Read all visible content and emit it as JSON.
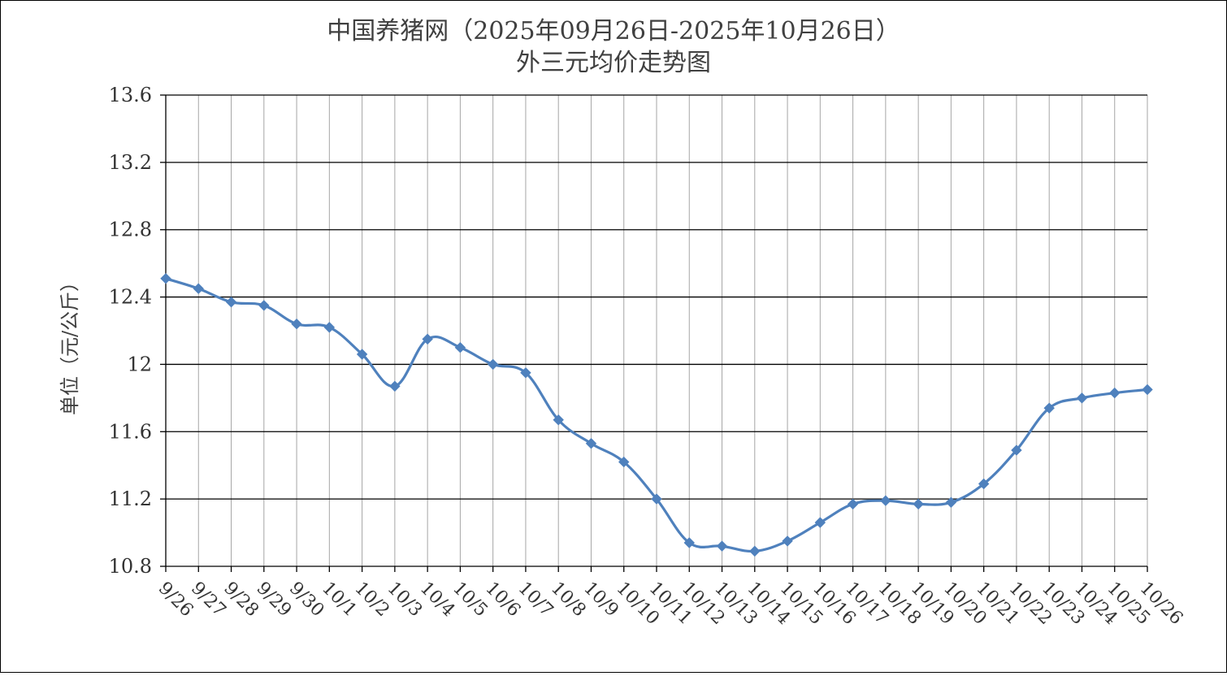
{
  "chart_data": {
    "type": "line",
    "title": "中国养猪网（2025年09月26日-2025年10月26日）",
    "subtitle": "外三元均价走势图",
    "xlabel": "",
    "ylabel": "单位（元/公斤）",
    "ylim": [
      10.8,
      13.6
    ],
    "yticks": [
      "10.8",
      "11.2",
      "11.6",
      "12",
      "12.4",
      "12.8",
      "13.2",
      "13.6"
    ],
    "grid": true,
    "legend": "none",
    "colors": {
      "line": "#4f81bd",
      "grid": "#000000",
      "axis": "#000000"
    },
    "categories": [
      "9/26",
      "9/27",
      "9/28",
      "9/29",
      "9/30",
      "10/1",
      "10/2",
      "10/3",
      "10/4",
      "10/5",
      "10/6",
      "10/7",
      "10/8",
      "10/9",
      "10/10",
      "10/11",
      "10/12",
      "10/13",
      "10/14",
      "10/15",
      "10/16",
      "10/17",
      "10/18",
      "10/19",
      "10/20",
      "10/21",
      "10/22",
      "10/23",
      "10/24",
      "10/25",
      "10/26"
    ],
    "series": [
      {
        "values": [
          12.51,
          12.45,
          12.37,
          12.35,
          12.24,
          12.22,
          12.06,
          11.87,
          12.15,
          12.1,
          12.0,
          11.95,
          11.67,
          11.53,
          11.42,
          11.2,
          10.94,
          10.92,
          10.89,
          10.95,
          11.06,
          11.17,
          11.19,
          11.17,
          11.18,
          11.29,
          11.49,
          11.74,
          11.8,
          11.83,
          11.85
        ]
      }
    ]
  }
}
